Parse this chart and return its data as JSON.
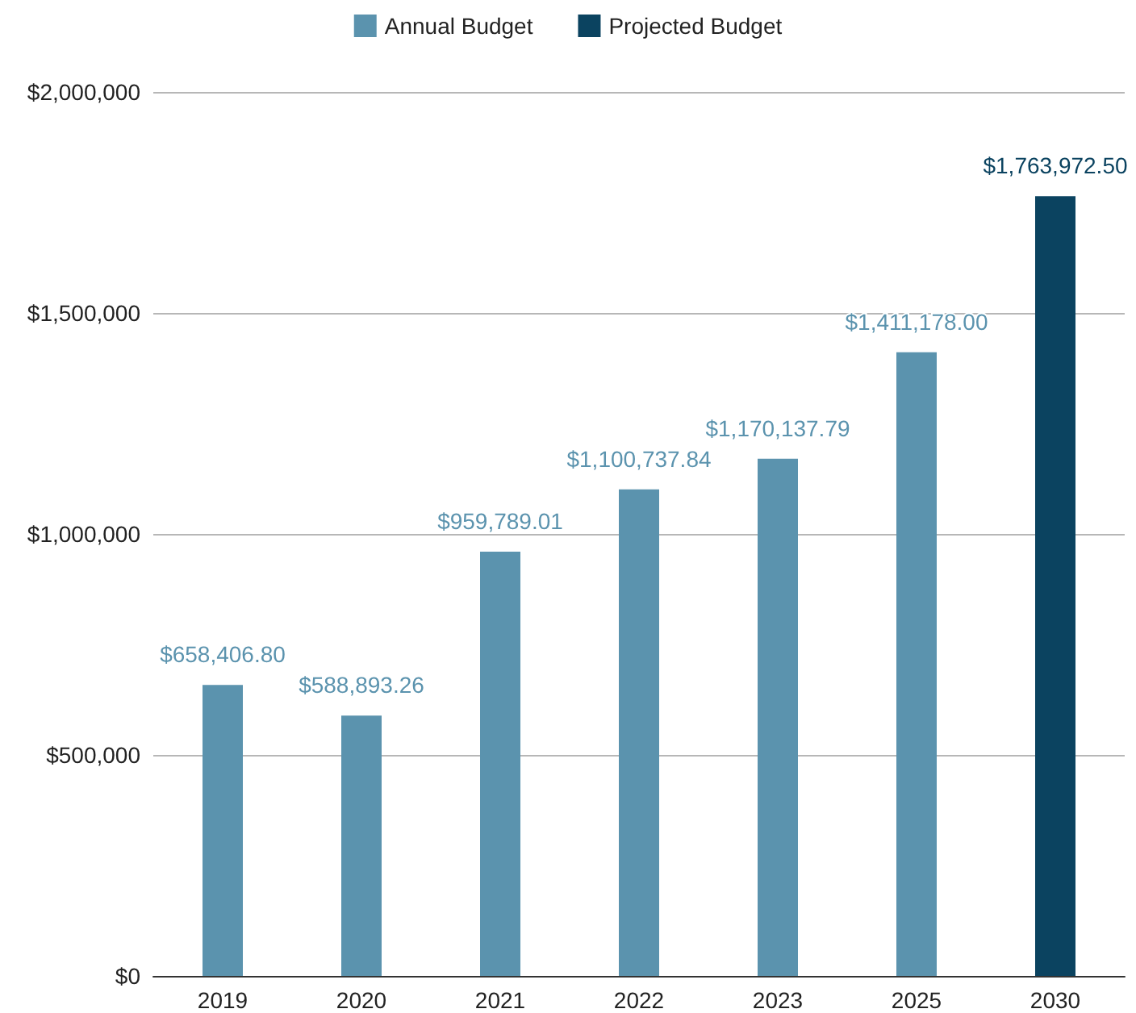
{
  "chart_data": {
    "type": "bar",
    "categories": [
      "2019",
      "2020",
      "2021",
      "2022",
      "2023",
      "2025",
      "2030"
    ],
    "series": [
      {
        "name": "Annual Budget",
        "color": "#5b93ae",
        "values": [
          658406.8,
          588893.26,
          959789.01,
          1100737.84,
          1170137.79,
          1411178,
          null
        ],
        "value_labels": [
          "$658,406.80",
          "$588,893.26",
          "$959,789.01",
          "$1,100,737.84",
          "$1,170,137.79",
          "$1,411,178.00",
          null
        ]
      },
      {
        "name": "Projected Budget",
        "color": "#0b4360",
        "values": [
          null,
          null,
          null,
          null,
          null,
          null,
          1763972.5
        ],
        "value_labels": [
          null,
          null,
          null,
          null,
          null,
          null,
          "$1,763,972.50"
        ]
      }
    ],
    "ylim": [
      0,
      2000000
    ],
    "yticks": [
      {
        "value": 0,
        "label": "$0"
      },
      {
        "value": 500000,
        "label": "$500,000"
      },
      {
        "value": 1000000,
        "label": "$1,000,000"
      },
      {
        "value": 1500000,
        "label": "$1,500,000"
      },
      {
        "value": 2000000,
        "label": "$2,000,000"
      }
    ],
    "grid": "y",
    "legend": "top"
  }
}
